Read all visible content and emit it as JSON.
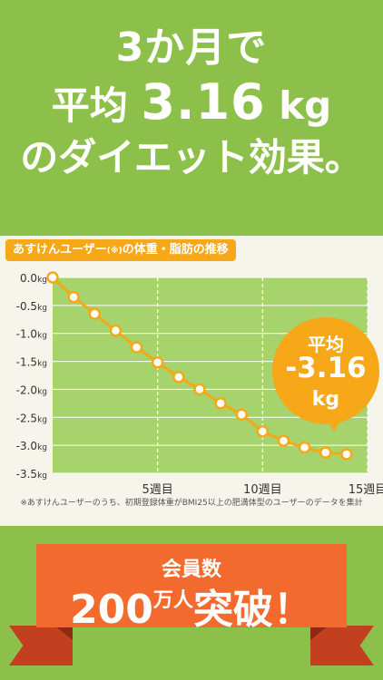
{
  "headline": {
    "line1": "3か月で",
    "line2_prefix": "平均",
    "line2_value": "3.16",
    "line2_unit": "kg",
    "line3": "のダイエット効果。"
  },
  "chart_badge": {
    "label": "あすけんユーザー",
    "note": "(※)",
    "label_suffix": "の体重・脂肪の推移"
  },
  "average_bubble": {
    "label": "平均",
    "value": "-3.16",
    "unit": "kg"
  },
  "footnote": "※あすけんユーザーのうち、初期登録体重がBMI25以上の肥満体型のユーザーのデータを集計",
  "ribbon": {
    "line1": "会員数",
    "number": "200",
    "small_chars": "万人",
    "suffix": "突破！"
  },
  "colors": {
    "background": "#8dc04a",
    "accent_orange": "#f6a818",
    "ribbon_orange": "#f26a2e",
    "plot_green": "#a6d36b"
  },
  "chart_data": {
    "type": "line",
    "title": "あすけんユーザー(※)の体重・脂肪の推移",
    "xlabel": "",
    "ylabel": "",
    "x": [
      0,
      1,
      2,
      3,
      4,
      5,
      6,
      7,
      8,
      9,
      10,
      11,
      12,
      13,
      14
    ],
    "series": [
      {
        "values": [
          0.0,
          -0.35,
          -0.65,
          -0.95,
          -1.25,
          -1.52,
          -1.78,
          -2.0,
          -2.25,
          -2.45,
          -2.75,
          -2.92,
          -3.04,
          -3.13,
          -3.16
        ]
      }
    ],
    "xlim": [
      0,
      15
    ],
    "ylim": [
      -3.5,
      0.0
    ],
    "yticks": [
      {
        "v": 0.0,
        "label": "0.0"
      },
      {
        "v": -0.5,
        "label": "-0.5"
      },
      {
        "v": -1.0,
        "label": "-1.0"
      },
      {
        "v": -1.5,
        "label": "-1.5"
      },
      {
        "v": -2.0,
        "label": "-2.0"
      },
      {
        "v": -2.5,
        "label": "-2.5"
      },
      {
        "v": -3.0,
        "label": "-3.0"
      },
      {
        "v": -3.5,
        "label": "-3.5"
      }
    ],
    "ytick_unit": "kg",
    "xticks": [
      {
        "v": 5,
        "label": "5週目"
      },
      {
        "v": 10,
        "label": "10週目"
      },
      {
        "v": 15,
        "label": "15週目"
      }
    ],
    "grid": true
  }
}
